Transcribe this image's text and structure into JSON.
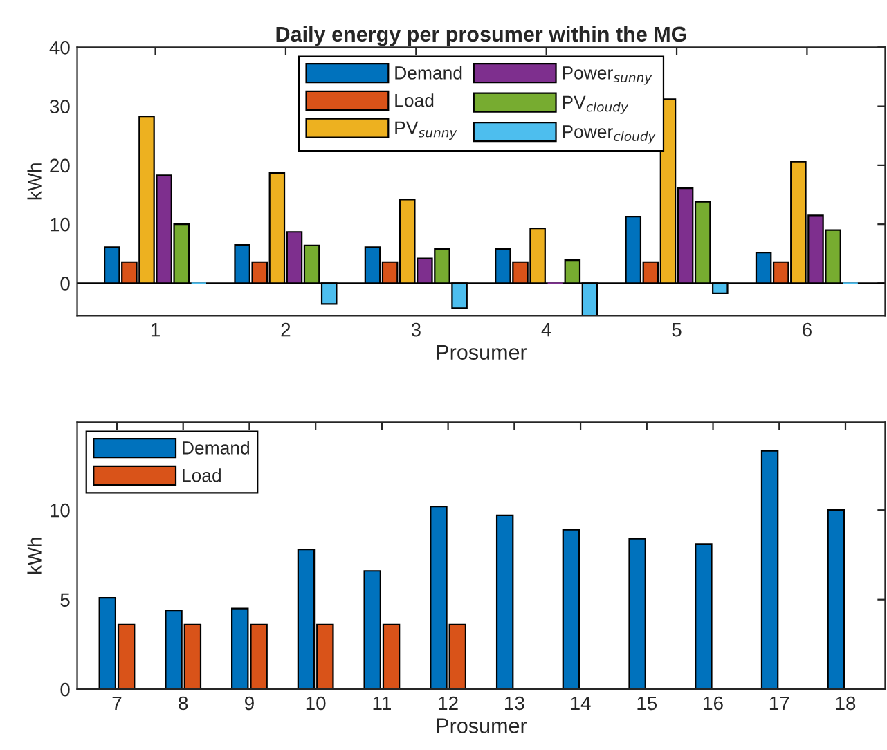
{
  "chart_data": [
    {
      "type": "bar",
      "title": "Daily energy per prosumer within the MG",
      "xlabel": "Prosumer",
      "ylabel": "kWh",
      "categories": [
        "1",
        "2",
        "3",
        "4",
        "5",
        "6"
      ],
      "series": [
        {
          "name": "Demand",
          "color": "#0072bd",
          "values": [
            6.1,
            6.5,
            6.1,
            5.8,
            11.3,
            5.2
          ]
        },
        {
          "name": "Load",
          "color": "#d95319",
          "values": [
            3.6,
            3.6,
            3.6,
            3.6,
            3.6,
            3.6
          ]
        },
        {
          "name": "PV$_{sunny}$",
          "color": "#edb120",
          "values": [
            28.3,
            18.7,
            14.2,
            9.3,
            31.2,
            20.6
          ]
        },
        {
          "name": "Power$_{sunny}$",
          "color": "#7e2f8e",
          "values": [
            18.3,
            8.7,
            4.2,
            0,
            16.1,
            11.5
          ]
        },
        {
          "name": "PV$_{cloudy}$",
          "color": "#77ac30",
          "values": [
            10.0,
            6.4,
            5.8,
            3.9,
            13.8,
            9.0
          ]
        },
        {
          "name": "Power$_{cloudy}$",
          "color": "#4dbeee",
          "values": [
            0,
            -3.5,
            -4.2,
            -5.5,
            -1.7,
            0
          ]
        }
      ],
      "ylim": [
        -5.5,
        40
      ],
      "yticks": [
        0,
        10,
        20,
        30,
        40
      ],
      "grid": false,
      "legend": "top",
      "ref_lines": [
        {
          "axis": "y",
          "value": 0,
          "color": "#000000"
        }
      ]
    },
    {
      "type": "bar",
      "xlabel": "Prosumer",
      "ylabel": "kWh",
      "categories": [
        "7",
        "8",
        "9",
        "10",
        "11",
        "12",
        "13",
        "14",
        "15",
        "16",
        "17",
        "18"
      ],
      "series": [
        {
          "name": "Demand",
          "color": "#0072bd",
          "values": [
            5.1,
            4.4,
            4.5,
            7.8,
            6.6,
            10.2,
            9.7,
            8.9,
            8.4,
            8.1,
            13.3,
            10.0
          ]
        },
        {
          "name": "Load",
          "color": "#d95319",
          "values": [
            3.6,
            3.6,
            3.6,
            3.6,
            3.6,
            3.6,
            0,
            0,
            0,
            0,
            0,
            0
          ]
        }
      ],
      "ylim": [
        0,
        14.9
      ],
      "yticks": [
        0,
        5,
        10
      ],
      "grid": false,
      "legend": "top left"
    }
  ]
}
